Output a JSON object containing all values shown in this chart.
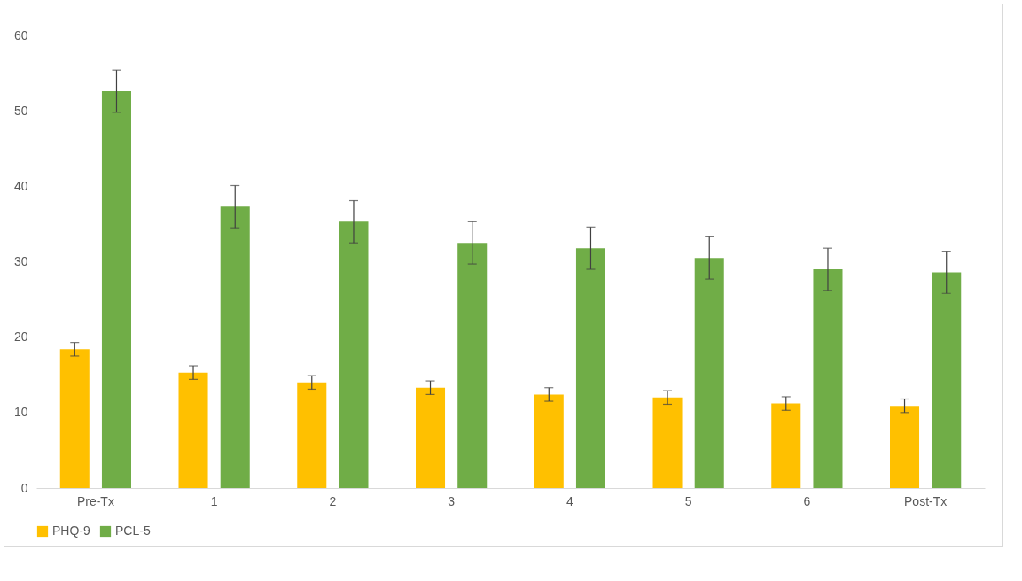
{
  "chart_data": {
    "type": "bar",
    "categories": [
      "Pre-Tx",
      "1",
      "2",
      "3",
      "4",
      "5",
      "6",
      "Post-Tx"
    ],
    "series": [
      {
        "name": "PHQ-9",
        "color": "#ffc000",
        "values": [
          18.4,
          15.3,
          14.0,
          13.3,
          12.4,
          12.0,
          11.2,
          10.9
        ],
        "errors": [
          0.9,
          0.9,
          0.9,
          0.9,
          0.9,
          0.9,
          0.9,
          0.9
        ]
      },
      {
        "name": "PCL-5",
        "color": "#70ad47",
        "values": [
          52.6,
          37.3,
          35.3,
          32.5,
          31.8,
          30.5,
          29.0,
          28.6
        ],
        "errors": [
          2.8,
          2.8,
          2.8,
          2.8,
          2.8,
          2.8,
          2.8,
          2.8
        ]
      }
    ],
    "ylim": [
      0,
      60
    ],
    "yticks": [
      0,
      10,
      20,
      30,
      40,
      50,
      60
    ],
    "legend": "bottom"
  }
}
